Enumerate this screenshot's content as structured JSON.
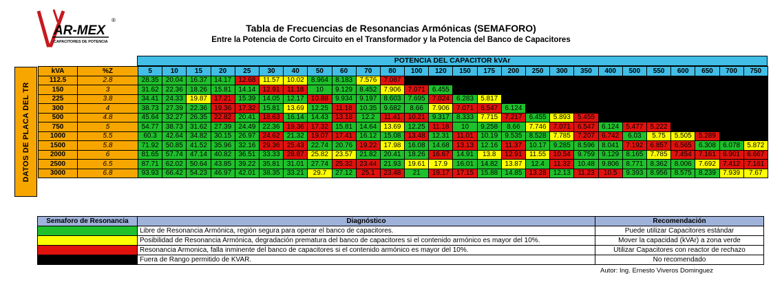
{
  "logo": {
    "text": "AR-MEX",
    "subtext": "CAPACITORES DE POTENCIA",
    "registered": "®"
  },
  "title": "Tabla de Frecuencias de Resonancias Armónicas (SEMAFORO)",
  "subtitle": "Entre la Potencia de Corto Circuito en el Transformador y la Potencia del Banco de Capacitores",
  "side_label": "DATOS DE PLACA DEL TR",
  "potencia_label": "POTENCIA DEL CAPACITOR kVAr",
  "kva_header": "kVA",
  "pz_header": "%Z",
  "colors": {
    "green": "#1fc02b",
    "yellow": "#ffff00",
    "red": "#e0120e",
    "black": "#000000",
    "orange": "#f7a600",
    "blue": "#41bde6",
    "legend_header": "#9fb3da"
  },
  "columns": [
    "5",
    "10",
    "15",
    "20",
    "25",
    "30",
    "40",
    "50",
    "60",
    "70",
    "80",
    "100",
    "120",
    "150",
    "175",
    "200",
    "250",
    "300",
    "350",
    "400",
    "500",
    "550",
    "600",
    "650",
    "700",
    "750"
  ],
  "rows": [
    {
      "kva": "112.5",
      "z": "2.8",
      "cells": [
        "28.35:g",
        "20.04:g",
        "16.37:g",
        "14.17:g",
        "12.68:r",
        "11.57:y",
        "10.02:y",
        "8.964:g",
        "8.183:g",
        "7.576:y",
        "7.087:r"
      ]
    },
    {
      "kva": "150",
      "z": "3",
      "cells": [
        "31.62:g",
        "22.36:g",
        "18.26:g",
        "15.81:g",
        "14.14:g",
        "12.91:r",
        "11.18:r",
        "10:g",
        "9.129:g",
        "8.452:g",
        "7.906:y",
        "7.071:r",
        "6.455:g"
      ]
    },
    {
      "kva": "225",
      "z": "3.8",
      "cells": [
        "34.41:g",
        "24.33:g",
        "19.87:y",
        "17.21:r",
        "15.39:g",
        "14.05:g",
        "12.17:g",
        "10.88:r",
        "9.934:g",
        "9.197:g",
        "8.603:g",
        "7.695:g",
        "7.024:r",
        "6.283:g",
        "5.817:y"
      ]
    },
    {
      "kva": "300",
      "z": "4",
      "cells": [
        "38.73:g",
        "27.39:g",
        "22.36:g",
        "19.36:r",
        "17.32:r",
        "15.81:g",
        "13.69:y",
        "12.25:g",
        "11.18:r",
        "10.35:g",
        "9.682:g",
        "8.66:g",
        "7.906:y",
        "7.071:r",
        "6.547:r",
        "6.124:g"
      ]
    },
    {
      "kva": "500",
      "z": "4.8",
      "cells": [
        "45.64:g",
        "32.27:g",
        "26.35:g",
        "22.82:r",
        "20.41:g",
        "18.63:r",
        "16.14:g",
        "14.43:g",
        "13.18:r",
        "12.2:g",
        "11.41:r",
        "10.21:r",
        "9.317:g",
        "8.333:g",
        "7.715:y",
        "7.217:r",
        "6.455:g",
        "5.893:y",
        "5.455:r"
      ]
    },
    {
      "kva": "750",
      "z": "5",
      "cells": [
        "54.77:g",
        "38.73:g",
        "31.62:g",
        "27.39:g",
        "24.49:g",
        "22.36:g",
        "19.36:r",
        "17.32:r",
        "15.81:g",
        "14.64:g",
        "13.69:y",
        "12.25:g",
        "11.18:r",
        "10:g",
        "9.258:g",
        "8.66:g",
        "7.746:y",
        "7.071:r",
        "6.547:r",
        "6.124:g",
        "5.477:r",
        "5.222:r"
      ]
    },
    {
      "kva": "1000",
      "z": "5.5",
      "cells": [
        "60.3:g",
        "42.64:g",
        "34.82:g",
        "30.15:g",
        "26.97:g",
        "24.62:r",
        "21.32:g",
        "19.07:r",
        "17.41:r",
        "16.12:g",
        "15.08:g",
        "13.48:r",
        "12.31:g",
        "11.01:r",
        "10.19:g",
        "9.535:g",
        "8.528:g",
        "7.785:y",
        "7.207:r",
        "6.742:r",
        "6.03:g",
        "5.75:y",
        "5.505:y",
        "5.289:r"
      ]
    },
    {
      "kva": "1500",
      "z": "5.8",
      "cells": [
        "71.92:g",
        "50.85:g",
        "41.52:g",
        "35.96:g",
        "32.16:g",
        "29.36:r",
        "25.43:r",
        "22.74:g",
        "20.76:g",
        "19.22:r",
        "17.98:y",
        "16.08:g",
        "14.68:g",
        "13.13:r",
        "12.16:g",
        "11.37:r",
        "10.17:g",
        "9.285:g",
        "8.596:g",
        "8.041:g",
        "7.192:r",
        "6.857:r",
        "6.565:r",
        "6.308:g",
        "6.078:g",
        "5.872:y"
      ]
    },
    {
      "kva": "2000",
      "z": "6",
      "cells": [
        "81.65:g",
        "57.74:g",
        "47.14:g",
        "40.82:g",
        "36.51:g",
        "33.33:g",
        "28.87:r",
        "25.82:y",
        "23.57:y",
        "21.82:g",
        "20.41:g",
        "18.26:g",
        "16.67:r",
        "14.91:g",
        "13.8:y",
        "12.91:r",
        "11.55:y",
        "10.54:r",
        "9.759:g",
        "9.129:g",
        "8.165:g",
        "7.785:y",
        "7.454:r",
        "7.161:r",
        "6.901:r",
        "6.667:r"
      ]
    },
    {
      "kva": "2500",
      "z": "6.5",
      "cells": [
        "87.71:g",
        "62.02:g",
        "50.64:g",
        "43.85:g",
        "39.22:g",
        "35.81:g",
        "31.01:g",
        "27.74:g",
        "25.32:r",
        "23.44:r",
        "21.93:g",
        "19.61:y",
        "17.9:y",
        "16.01:g",
        "14.82:g",
        "13.87:y",
        "12.4:g",
        "11.32:r",
        "10.48:g",
        "9.806:g",
        "8.771:g",
        "8.362:g",
        "8.006:g",
        "7.692:y",
        "7.412:r",
        "7.161:r"
      ]
    },
    {
      "kva": "3000",
      "z": "6.8",
      "cells": [
        "93.93:g",
        "66.42:g",
        "54.23:g",
        "46.97:g",
        "42.01:g",
        "38.35:g",
        "33.21:g",
        "29.7:y",
        "27.12:g",
        "25.1:r",
        "23.48:r",
        "21:g",
        "19.17:r",
        "17.15:r",
        "15.88:g",
        "14.85:g",
        "13.28:r",
        "12.13:g",
        "11.23:r",
        "10.5:r",
        "9.393:g",
        "8.956:g",
        "8.575:g",
        "8.239:g",
        "7.939:y",
        "7.67:y"
      ]
    }
  ],
  "legend": {
    "headers": [
      "Semaforo de Resonancia",
      "Diagnóstico",
      "Recomendación"
    ],
    "rows": [
      {
        "color": "g",
        "diag": "Libre de Resonancia Armónica, región segura para operar el banco de capacitores.",
        "rec": "Puede utilizar Capacitores estándar"
      },
      {
        "color": "y",
        "diag": "Posibilidad de Resonancia Armónica, degradación prematura del banco de capacitores si el contenido armónico es mayor del 10%.",
        "rec": "Mover la capacidad (kVAr) a zona verde"
      },
      {
        "color": "r",
        "diag": "Resonancia Armonica, falla inminente del banco de capacitores si el contenido armónico es mayor del 10%.",
        "rec": "Utilizar Capacitores con reactor de rechazo"
      },
      {
        "color": "b",
        "diag": "Fuera de Rango permitido de KVAR.",
        "rec": "No recomendado"
      }
    ]
  },
  "author": "Autor: Ing. Ernesto Viveros Dominguez"
}
